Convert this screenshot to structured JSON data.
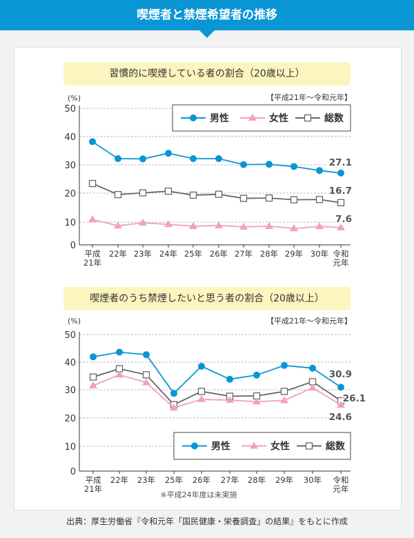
{
  "title": "喫煙者と禁煙希望者の推移",
  "footer": "出典：厚生労働省『令和元年「国民健康・栄養調査」の結果』をもとに作成",
  "colors": {
    "men": "#0a96d4",
    "women": "#f29ec8",
    "total": "#666666",
    "header": "#0a96d4",
    "title_bg": "#fdf5bf"
  },
  "chart_data": [
    {
      "type": "line",
      "title": "習慣的に喫煙している者の割合（20歳以上）",
      "period": "【平成21年〜令和元年】",
      "ylabel": "(%)",
      "ylim": [
        0,
        50
      ],
      "yticks": [
        "0",
        "10",
        "20",
        "30",
        "40",
        "50"
      ],
      "grid": true,
      "legend_position": "top-right",
      "categories": [
        "平成\n21年",
        "22年",
        "23年",
        "24年",
        "25年",
        "26年",
        "27年",
        "28年",
        "29年",
        "30年",
        "令和\n元年"
      ],
      "series": [
        {
          "name": "男性",
          "marker": "circle",
          "values": [
            38.2,
            32.2,
            32.1,
            34.1,
            32.2,
            32.2,
            30.1,
            30.2,
            29.4,
            28.0,
            27.1
          ],
          "end_label": "27.1"
        },
        {
          "name": "女性",
          "marker": "triangle",
          "values": [
            10.9,
            8.4,
            9.7,
            9.0,
            8.2,
            8.5,
            7.9,
            8.2,
            7.2,
            8.1,
            7.6
          ],
          "end_label": "7.6"
        },
        {
          "name": "総数",
          "marker": "square",
          "values": [
            23.4,
            19.5,
            20.1,
            20.7,
            19.3,
            19.6,
            18.2,
            18.3,
            17.7,
            17.8,
            16.7
          ],
          "end_label": "16.7"
        }
      ]
    },
    {
      "type": "line",
      "title": "喫煙者のうち禁煙したいと思う者の割合（20歳以上）",
      "period": "【平成21年〜令和元年】",
      "ylabel": "(%)",
      "ylim": [
        0,
        50
      ],
      "yticks": [
        "0",
        "10",
        "20",
        "30",
        "40",
        "50"
      ],
      "grid": true,
      "legend_position": "bottom-right",
      "note": "※平成24年度は未実施",
      "categories": [
        "平成\n21年",
        "22年",
        "23年",
        "25年",
        "26年",
        "27年",
        "28年",
        "29年",
        "30年",
        "令和\n元年"
      ],
      "series": [
        {
          "name": "男性",
          "marker": "circle",
          "values": [
            41.9,
            43.6,
            42.7,
            28.7,
            38.5,
            33.8,
            35.3,
            38.8,
            37.8,
            30.9
          ],
          "end_label": "30.9"
        },
        {
          "name": "女性",
          "marker": "triangle",
          "values": [
            31.5,
            35.4,
            32.6,
            23.6,
            26.6,
            26.3,
            25.8,
            26.2,
            30.7,
            24.6
          ],
          "end_label": "24.6"
        },
        {
          "name": "総数",
          "marker": "square",
          "values": [
            34.6,
            37.6,
            35.4,
            24.7,
            29.4,
            27.7,
            27.8,
            29.4,
            32.9,
            26.1
          ],
          "end_label": "26.1"
        }
      ]
    }
  ]
}
